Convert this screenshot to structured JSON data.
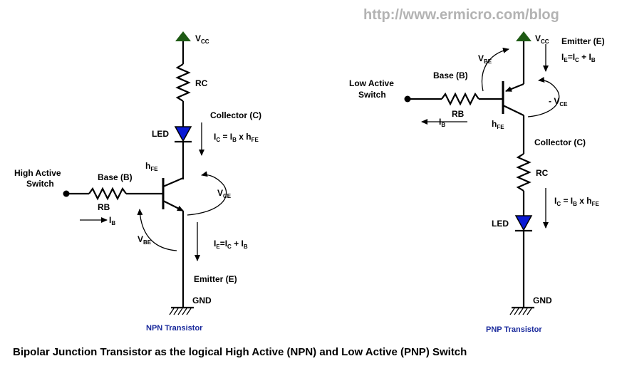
{
  "watermark": "http://www.ermicro.com/blog",
  "caption": "Bipolar Junction Transistor as the logical High Active (NPN) and Low Active (PNP) Switch",
  "npn": {
    "title": "NPN Transistor",
    "vcc_main": "V",
    "vcc_sub": "CC",
    "rc": "RC",
    "led": "LED",
    "collector": "Collector (C)",
    "ic_eq": {
      "p1": "I",
      "s1": "C",
      "p2": " = I",
      "s2": "B",
      "p3": " x h",
      "s3": "FE"
    },
    "hfe": {
      "main": "h",
      "sub": "FE"
    },
    "switch_line1": "High Active",
    "switch_line2": "Switch",
    "base": "Base (B)",
    "rb": "RB",
    "ib": {
      "main": "I",
      "sub": "B"
    },
    "vbe": {
      "main": "V",
      "sub": "BE"
    },
    "vce": {
      "main": "V",
      "sub": "CE"
    },
    "ie_eq": {
      "p1": "I",
      "s1": "E",
      "p2": "=I",
      "s2": "C",
      "p3": " + I",
      "s3": "B"
    },
    "emitter": "Emitter (E)",
    "gnd": "GND"
  },
  "pnp": {
    "title": "PNP Transistor",
    "vcc_main": "V",
    "vcc_sub": "CC",
    "emitter": "Emitter (E)",
    "ie_eq": {
      "p1": "I",
      "s1": "E",
      "p2": "=I",
      "s2": "C",
      "p3": " + I",
      "s3": "B"
    },
    "vbe": {
      "main": "V",
      "sub": "BE"
    },
    "switch_line1": "Low Active",
    "switch_line2": "Switch",
    "base": "Base (B)",
    "rb": "RB",
    "ib": {
      "main": "I",
      "sub": "B"
    },
    "hfe": {
      "main": "h",
      "sub": "FE"
    },
    "vce": {
      "main": "- V",
      "sub": "CE"
    },
    "collector": "Collector (C)",
    "rc": "RC",
    "ic_eq": {
      "p1": "I",
      "s1": "C",
      "p2": " = I",
      "s2": "B",
      "p3": " x h",
      "s3": "FE"
    },
    "led": "LED",
    "gnd": "GND"
  },
  "colors": {
    "vcc_triangle": "#1e5a14",
    "led": "#0a1ad6",
    "title_blue": "#1a2a9c",
    "watermark": "#b3b3b3"
  }
}
